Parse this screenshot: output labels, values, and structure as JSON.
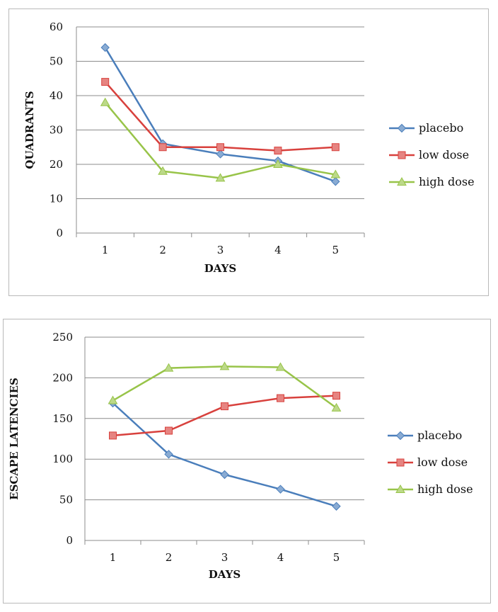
{
  "colors": {
    "placebo": "#4a7ebb",
    "low_dose": "#d8413d",
    "high_dose": "#98c449",
    "grid": "#8c8c8c"
  },
  "chart_data": [
    {
      "type": "line",
      "xlabel": "DAYS",
      "ylabel": "QUADRANTS",
      "categories": [
        "1",
        "2",
        "3",
        "4",
        "5"
      ],
      "ylim": [
        0,
        60
      ],
      "yticks": [
        0,
        10,
        20,
        30,
        40,
        50,
        60
      ],
      "grid": "horizontal",
      "legend": "right",
      "series": [
        {
          "name": "placebo",
          "marker": "diamond",
          "values": [
            54,
            26,
            23,
            21,
            15
          ]
        },
        {
          "name": "low dose",
          "marker": "square",
          "values": [
            44,
            25,
            25,
            24,
            25
          ]
        },
        {
          "name": "high dose",
          "marker": "triangle",
          "values": [
            38,
            18,
            16,
            20,
            17
          ]
        }
      ]
    },
    {
      "type": "line",
      "xlabel": "DAYS",
      "ylabel": "ESCAPE  LATENCIES",
      "categories": [
        "1",
        "2",
        "3",
        "4",
        "5"
      ],
      "ylim": [
        0,
        250
      ],
      "yticks": [
        0,
        50,
        100,
        150,
        200,
        250
      ],
      "grid": "horizontal",
      "legend": "right",
      "series": [
        {
          "name": "placebo",
          "marker": "diamond",
          "values": [
            169,
            106,
            81,
            63,
            42
          ]
        },
        {
          "name": "low dose",
          "marker": "square",
          "values": [
            129,
            135,
            165,
            175,
            178
          ]
        },
        {
          "name": "high dose",
          "marker": "triangle",
          "values": [
            172,
            212,
            214,
            213,
            163
          ]
        }
      ]
    }
  ]
}
